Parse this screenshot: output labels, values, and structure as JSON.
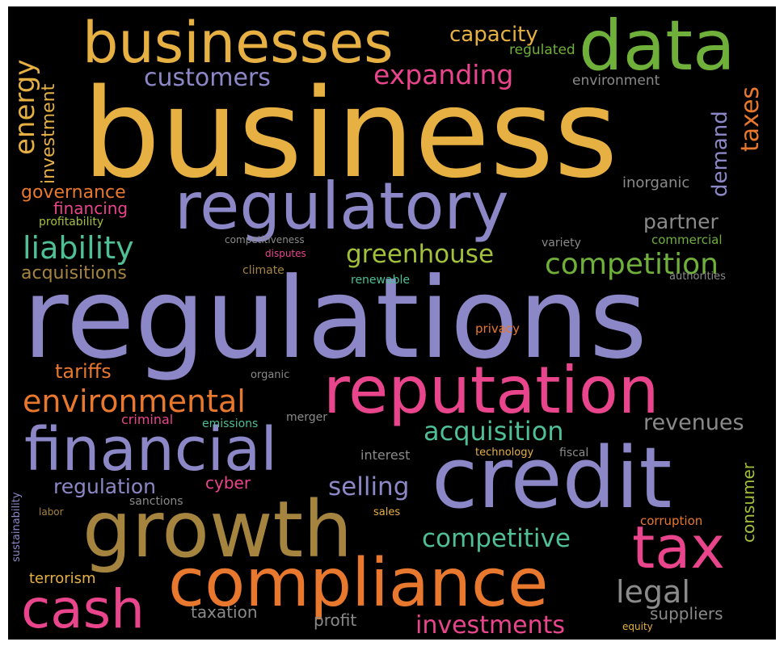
{
  "colors": {
    "gold": "#e6b042",
    "green": "#6fb03a",
    "lavender": "#8c87c6",
    "pink": "#e8458c",
    "orange": "#e8782e",
    "teal": "#4fbf95",
    "tan": "#a5843f",
    "gray": "#8a8a8a",
    "lime": "#a2c03a",
    "background": "#000000"
  },
  "words": [
    "business",
    "regulations",
    "businesses",
    "data",
    "regulatory",
    "reputation",
    "credit",
    "financial",
    "growth",
    "compliance",
    "tax",
    "cash",
    "environmental",
    "competition",
    "liability",
    "greenhouse",
    "acquisition",
    "revenues",
    "competitive",
    "investments",
    "regulation",
    "selling",
    "legal",
    "energy",
    "investment",
    "customers",
    "expanding",
    "capacity",
    "regulated",
    "environment",
    "taxes",
    "demand",
    "governance",
    "financing",
    "profitability",
    "acquisitions",
    "partner",
    "inorganic",
    "commercial",
    "variety",
    "renewable",
    "climate",
    "disputes",
    "tariffs",
    "organic",
    "privacy",
    "criminal",
    "emissions",
    "merger",
    "interest",
    "technology",
    "fiscal",
    "cyber",
    "sanctions",
    "labor",
    "sales",
    "corruption",
    "terrorism",
    "taxation",
    "profit",
    "suppliers",
    "equity",
    "consumer",
    "sustainability",
    "authorities",
    "competitiveness"
  ]
}
